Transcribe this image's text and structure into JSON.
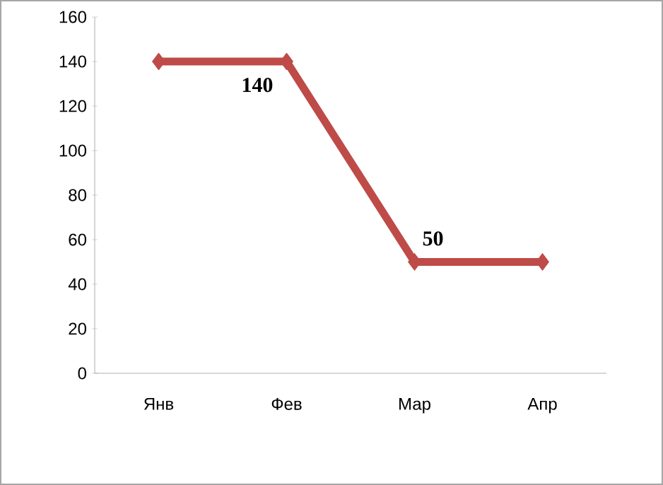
{
  "chart_data": {
    "type": "line",
    "categories": [
      "Янв",
      "Фев",
      "Мар",
      "Апр"
    ],
    "values": [
      140,
      140,
      50,
      50
    ],
    "value_labels": [
      null,
      "140",
      "50",
      null
    ],
    "color": "#be4b48",
    "marker": "diamond",
    "line_style": "solid",
    "ylim": [
      0,
      160
    ],
    "yticks": [
      0,
      20,
      40,
      60,
      80,
      100,
      120,
      140,
      160
    ]
  }
}
